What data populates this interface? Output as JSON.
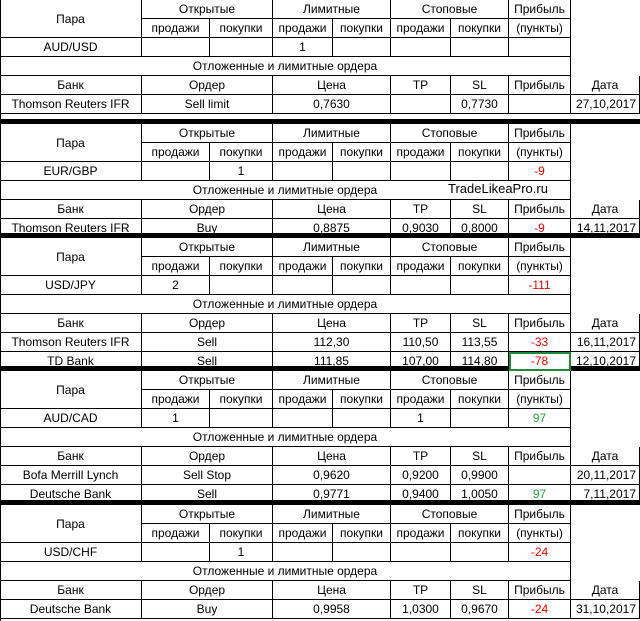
{
  "labels": {
    "pair": "Пара",
    "open": "Открытые",
    "limit": "Лимитные",
    "stop": "Стоповые",
    "profit": "Прибыль",
    "sell": "продажи",
    "buy": "покупки",
    "points": "(пункты)",
    "pending": "Отложенные и лимитные ордера",
    "bank": "Банк",
    "order": "Ордер",
    "price": "Цена",
    "tp": "TP",
    "sl": "SL",
    "date": "Дата"
  },
  "watermark": "TradeLikeaPro.ru",
  "colors": {
    "negative": "#ff0000",
    "positive": "#21a33b",
    "grid": "#000000",
    "selection": "#1e8a3c"
  },
  "blocks": [
    {
      "pair": "AUD/USD",
      "open_sell": "",
      "open_buy": "",
      "limit_sell": "1",
      "limit_buy": "",
      "stop_sell": "",
      "stop_buy": "",
      "profit": "",
      "profit_sign": "",
      "orders": [
        {
          "bank": "Thomson Reuters IFR",
          "order": "Sell limit",
          "price": "0,7630",
          "tp": "",
          "sl": "0,7730",
          "profit": "",
          "profit_sign": "",
          "date": "27,10,2017"
        }
      ]
    },
    {
      "pair": "EUR/GBP",
      "open_sell": "",
      "open_buy": "1",
      "limit_sell": "",
      "limit_buy": "",
      "stop_sell": "",
      "stop_buy": "",
      "profit": "-9",
      "profit_sign": "neg",
      "orders": [
        {
          "bank": "Thomson Reuters IFR",
          "order": "Buy",
          "price": "0,8875",
          "tp": "0,9030",
          "sl": "0,8000",
          "profit": "-9",
          "profit_sign": "neg",
          "date": "14,11,2017"
        }
      ]
    },
    {
      "pair": "USD/JPY",
      "open_sell": "2",
      "open_buy": "",
      "limit_sell": "",
      "limit_buy": "",
      "stop_sell": "",
      "stop_buy": "",
      "profit": "-111",
      "profit_sign": "neg",
      "orders": [
        {
          "bank": "Thomson Reuters IFR",
          "order": "Sell",
          "price": "112,30",
          "tp": "110,50",
          "sl": "113,55",
          "profit": "-33",
          "profit_sign": "neg",
          "date": "16,11,2017"
        },
        {
          "bank": "TD Bank",
          "order": "Sell",
          "price": "111,85",
          "tp": "107,00",
          "sl": "114,80",
          "profit": "-78",
          "profit_sign": "neg",
          "date": "12,10,2017"
        }
      ]
    },
    {
      "pair": "AUD/CAD",
      "open_sell": "1",
      "open_buy": "",
      "limit_sell": "",
      "limit_buy": "",
      "stop_sell": "1",
      "stop_buy": "",
      "profit": "97",
      "profit_sign": "pos",
      "orders": [
        {
          "bank": "Bofa Merrill Lynch",
          "order": "Sell Stop",
          "price": "0,9620",
          "tp": "0,9200",
          "sl": "0,9900",
          "profit": "",
          "profit_sign": "",
          "date": "20,11,2017"
        },
        {
          "bank": "Deutsche Bank",
          "order": "Sell",
          "price": "0,9771",
          "tp": "0,9400",
          "sl": "1,0050",
          "profit": "97",
          "profit_sign": "pos",
          "date": "7,11,2017"
        }
      ]
    },
    {
      "pair": "USD/CHF",
      "open_sell": "",
      "open_buy": "1",
      "limit_sell": "",
      "limit_buy": "",
      "stop_sell": "",
      "stop_buy": "",
      "profit": "-24",
      "profit_sign": "neg",
      "orders": [
        {
          "bank": "Deutsche Bank",
          "order": "Buy",
          "price": "0,9958",
          "tp": "1,0300",
          "sl": "0,9670",
          "profit": "-24",
          "profit_sign": "neg",
          "date": "31,10,2017"
        }
      ]
    }
  ]
}
